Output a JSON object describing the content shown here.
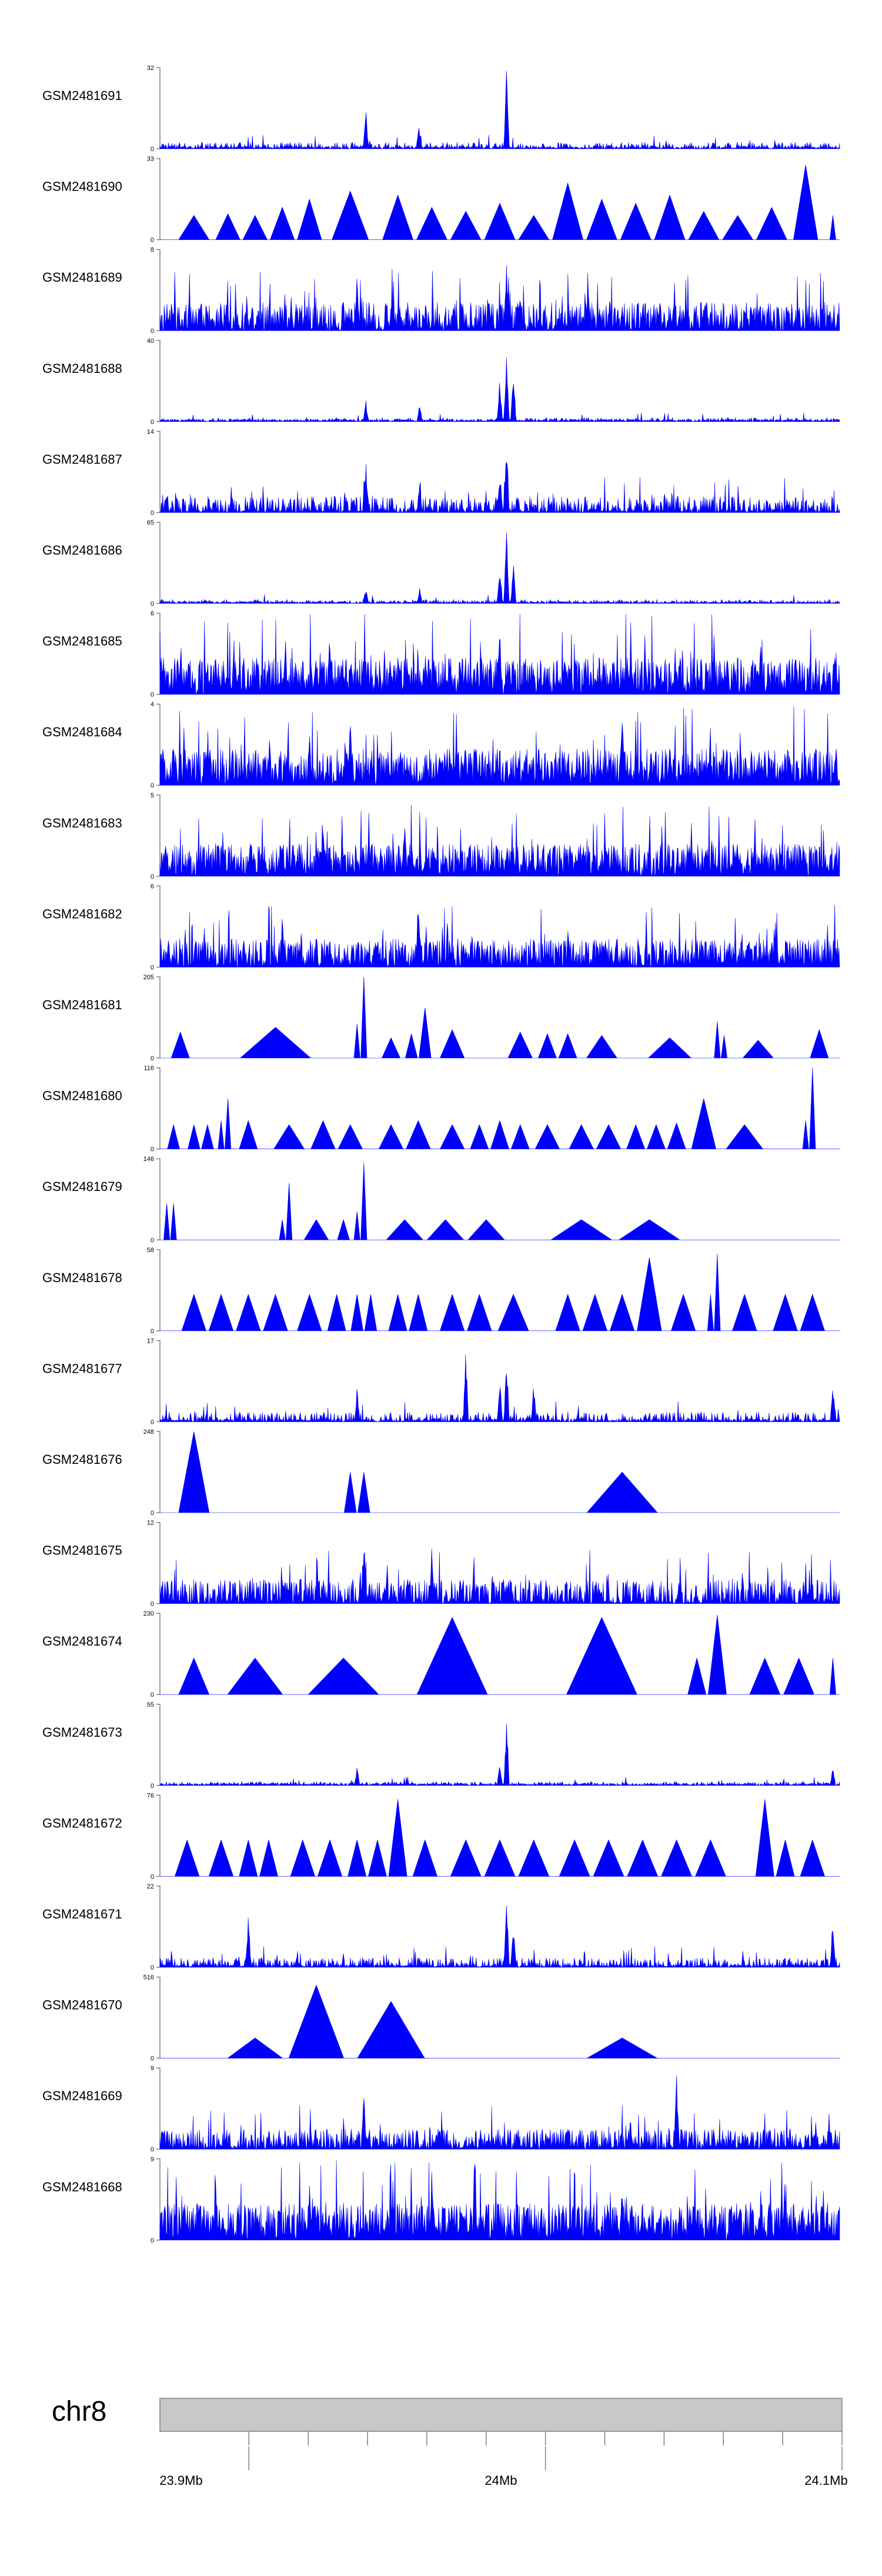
{
  "chart_data": {
    "type": "area",
    "title": "",
    "chromosome": "chr8",
    "region": {
      "start_mb": 23.87,
      "end_mb": 24.1
    },
    "position_labels": [
      "23.9Mb",
      "24Mb",
      "24.1Mb"
    ],
    "position_ticks_mb": [
      23.9,
      24.0,
      24.1
    ],
    "minor_ticks_mb": [
      23.9,
      23.92,
      23.94,
      23.96,
      23.98,
      24.0,
      24.02,
      24.04,
      24.06,
      24.08,
      24.1
    ],
    "colors": {
      "signal": "#0000ff",
      "axis": "#808080",
      "ideogram": "#c8c8c8"
    },
    "tracks": [
      {
        "name": "GSM2481691",
        "ymax": "32",
        "ymin": "0",
        "ymax_value": 32,
        "style": "noise",
        "density": 0.5,
        "base": 0.08,
        "spikes": [
          [
            0.303,
            0.5
          ],
          [
            0.51,
            1.0
          ],
          [
            0.381,
            0.35
          ],
          [
            0.66,
            0.05
          ]
        ]
      },
      {
        "name": "GSM2481690",
        "ymax": "33",
        "ymin": "0",
        "ymax_value": 33,
        "style": "triangles",
        "peaks": [
          [
            0.05,
            0.3
          ],
          [
            0.1,
            0.32
          ],
          [
            0.14,
            0.3
          ],
          [
            0.18,
            0.4
          ],
          [
            0.22,
            0.5
          ],
          [
            0.28,
            0.6
          ],
          [
            0.35,
            0.55
          ],
          [
            0.4,
            0.4
          ],
          [
            0.45,
            0.35
          ],
          [
            0.5,
            0.45
          ],
          [
            0.55,
            0.3
          ],
          [
            0.6,
            0.7
          ],
          [
            0.65,
            0.5
          ],
          [
            0.7,
            0.45
          ],
          [
            0.75,
            0.55
          ],
          [
            0.8,
            0.35
          ],
          [
            0.85,
            0.3
          ],
          [
            0.9,
            0.4
          ],
          [
            0.95,
            0.92
          ],
          [
            0.99,
            0.3
          ]
        ]
      },
      {
        "name": "GSM2481689",
        "ymax": "8",
        "ymin": "0",
        "ymax_value": 8,
        "style": "noise",
        "density": 0.9,
        "base": 0.35,
        "spikes": [
          [
            0.29,
            0.7
          ],
          [
            0.51,
            0.9
          ],
          [
            0.53,
            0.6
          ]
        ]
      },
      {
        "name": "GSM2481688",
        "ymax": "40",
        "ymin": "0",
        "ymax_value": 40,
        "style": "noise",
        "density": 0.3,
        "base": 0.05,
        "spikes": [
          [
            0.303,
            0.28
          ],
          [
            0.5,
            0.6
          ],
          [
            0.51,
            1.0
          ],
          [
            0.52,
            0.7
          ],
          [
            0.382,
            0.25
          ]
        ]
      },
      {
        "name": "GSM2481687",
        "ymax": "14",
        "ymin": "0",
        "ymax_value": 14,
        "style": "noise",
        "density": 0.7,
        "base": 0.2,
        "spikes": [
          [
            0.303,
            0.7
          ],
          [
            0.51,
            1.0
          ],
          [
            0.5,
            0.6
          ],
          [
            0.382,
            0.45
          ]
        ]
      },
      {
        "name": "GSM2481686",
        "ymax": "65",
        "ymin": "0",
        "ymax_value": 65,
        "style": "noise",
        "density": 0.3,
        "base": 0.05,
        "spikes": [
          [
            0.303,
            0.22
          ],
          [
            0.5,
            0.55
          ],
          [
            0.51,
            1.0
          ],
          [
            0.52,
            0.6
          ],
          [
            0.382,
            0.2
          ]
        ]
      },
      {
        "name": "GSM2481685",
        "ymax": "6",
        "ymin": "0",
        "ymax_value": 6,
        "style": "noise",
        "density": 1.0,
        "base": 0.45,
        "spikes": [
          [
            0.25,
            0.9
          ],
          [
            0.5,
            0.8
          ]
        ]
      },
      {
        "name": "GSM2481684",
        "ymax": "4",
        "ymin": "0",
        "ymax_value": 4,
        "style": "noise",
        "density": 1.0,
        "base": 0.45,
        "spikes": [
          [
            0.28,
            0.9
          ],
          [
            0.68,
            0.9
          ]
        ]
      },
      {
        "name": "GSM2481683",
        "ymax": "5",
        "ymin": "0",
        "ymax_value": 5,
        "style": "noise",
        "density": 1.0,
        "base": 0.4,
        "spikes": [
          [
            0.24,
            0.9
          ],
          [
            0.36,
            0.8
          ]
        ]
      },
      {
        "name": "GSM2481682",
        "ymax": "6",
        "ymin": "0",
        "ymax_value": 6,
        "style": "noise",
        "density": 0.9,
        "base": 0.35,
        "spikes": [
          [
            0.38,
            0.9
          ],
          [
            0.18,
            0.7
          ]
        ]
      },
      {
        "name": "GSM2481681",
        "ymax": "205",
        "ymin": "0",
        "ymax_value": 205,
        "style": "triangles",
        "peaks": [
          [
            0.03,
            0.32
          ],
          [
            0.17,
            0.38
          ],
          [
            0.29,
            0.42
          ],
          [
            0.3,
            1.0
          ],
          [
            0.34,
            0.25
          ],
          [
            0.37,
            0.3
          ],
          [
            0.39,
            0.62
          ],
          [
            0.43,
            0.35
          ],
          [
            0.53,
            0.32
          ],
          [
            0.57,
            0.3
          ],
          [
            0.6,
            0.3
          ],
          [
            0.65,
            0.28
          ],
          [
            0.75,
            0.25
          ],
          [
            0.82,
            0.45
          ],
          [
            0.83,
            0.28
          ],
          [
            0.88,
            0.22
          ],
          [
            0.97,
            0.35
          ]
        ]
      },
      {
        "name": "GSM2481680",
        "ymax": "116",
        "ymin": "0",
        "ymax_value": 116,
        "style": "triangles",
        "peaks": [
          [
            0.02,
            0.3
          ],
          [
            0.05,
            0.3
          ],
          [
            0.07,
            0.3
          ],
          [
            0.09,
            0.35
          ],
          [
            0.1,
            0.62
          ],
          [
            0.13,
            0.35
          ],
          [
            0.19,
            0.3
          ],
          [
            0.24,
            0.35
          ],
          [
            0.28,
            0.3
          ],
          [
            0.34,
            0.3
          ],
          [
            0.38,
            0.35
          ],
          [
            0.43,
            0.3
          ],
          [
            0.47,
            0.3
          ],
          [
            0.5,
            0.35
          ],
          [
            0.53,
            0.3
          ],
          [
            0.57,
            0.3
          ],
          [
            0.62,
            0.3
          ],
          [
            0.66,
            0.3
          ],
          [
            0.7,
            0.3
          ],
          [
            0.73,
            0.3
          ],
          [
            0.76,
            0.32
          ],
          [
            0.8,
            0.62
          ],
          [
            0.86,
            0.3
          ],
          [
            0.95,
            0.35
          ],
          [
            0.96,
            1.0
          ]
        ]
      },
      {
        "name": "GSM2481679",
        "ymax": "146",
        "ymin": "0",
        "ymax_value": 146,
        "style": "triangles",
        "peaks": [
          [
            0.01,
            0.45
          ],
          [
            0.02,
            0.45
          ],
          [
            0.18,
            0.25
          ],
          [
            0.19,
            0.7
          ],
          [
            0.23,
            0.25
          ],
          [
            0.27,
            0.25
          ],
          [
            0.29,
            0.35
          ],
          [
            0.3,
            0.95
          ],
          [
            0.36,
            0.25
          ],
          [
            0.42,
            0.25
          ],
          [
            0.48,
            0.25
          ],
          [
            0.62,
            0.25
          ],
          [
            0.72,
            0.25
          ]
        ]
      },
      {
        "name": "GSM2481678",
        "ymax": "58",
        "ymin": "0",
        "ymax_value": 58,
        "style": "triangles",
        "peaks": [
          [
            0.05,
            0.45
          ],
          [
            0.09,
            0.45
          ],
          [
            0.13,
            0.45
          ],
          [
            0.17,
            0.45
          ],
          [
            0.22,
            0.45
          ],
          [
            0.26,
            0.45
          ],
          [
            0.29,
            0.45
          ],
          [
            0.31,
            0.45
          ],
          [
            0.35,
            0.45
          ],
          [
            0.38,
            0.45
          ],
          [
            0.43,
            0.45
          ],
          [
            0.47,
            0.45
          ],
          [
            0.52,
            0.45
          ],
          [
            0.6,
            0.45
          ],
          [
            0.64,
            0.45
          ],
          [
            0.68,
            0.45
          ],
          [
            0.72,
            0.9
          ],
          [
            0.77,
            0.45
          ],
          [
            0.81,
            0.45
          ],
          [
            0.82,
            0.95
          ],
          [
            0.86,
            0.45
          ],
          [
            0.92,
            0.45
          ],
          [
            0.96,
            0.45
          ]
        ]
      },
      {
        "name": "GSM2481677",
        "ymax": "17",
        "ymin": "0",
        "ymax_value": 17,
        "style": "noise",
        "density": 0.5,
        "base": 0.12,
        "spikes": [
          [
            0.29,
            0.45
          ],
          [
            0.51,
            0.9
          ],
          [
            0.5,
            0.6
          ],
          [
            0.45,
            0.95
          ],
          [
            0.55,
            0.5
          ],
          [
            0.99,
            0.55
          ]
        ]
      },
      {
        "name": "GSM2481676",
        "ymax": "248",
        "ymin": "0",
        "ymax_value": 248,
        "style": "triangles",
        "peaks": [
          [
            0.05,
            1.0
          ],
          [
            0.28,
            0.5
          ],
          [
            0.3,
            0.5
          ],
          [
            0.68,
            0.5
          ]
        ]
      },
      {
        "name": "GSM2481675",
        "ymax": "12",
        "ymin": "0",
        "ymax_value": 12,
        "style": "noise",
        "density": 0.8,
        "base": 0.3,
        "spikes": [
          [
            0.3,
            0.95
          ],
          [
            0.4,
            0.75
          ]
        ]
      },
      {
        "name": "GSM2481674",
        "ymax": "230",
        "ymin": "0",
        "ymax_value": 230,
        "style": "triangles",
        "peaks": [
          [
            0.05,
            0.45
          ],
          [
            0.14,
            0.45
          ],
          [
            0.27,
            0.45
          ],
          [
            0.43,
            0.95
          ],
          [
            0.65,
            0.95
          ],
          [
            0.79,
            0.45
          ],
          [
            0.82,
            0.98
          ],
          [
            0.89,
            0.45
          ],
          [
            0.94,
            0.45
          ],
          [
            0.99,
            0.45
          ]
        ]
      },
      {
        "name": "GSM2481673",
        "ymax": "55",
        "ymin": "0",
        "ymax_value": 55,
        "style": "noise",
        "density": 0.3,
        "base": 0.05,
        "spikes": [
          [
            0.29,
            0.25
          ],
          [
            0.51,
            0.95
          ],
          [
            0.5,
            0.35
          ],
          [
            0.99,
            0.25
          ]
        ]
      },
      {
        "name": "GSM2481672",
        "ymax": "76",
        "ymin": "0",
        "ymax_value": 76,
        "style": "triangles",
        "peaks": [
          [
            0.04,
            0.45
          ],
          [
            0.09,
            0.45
          ],
          [
            0.13,
            0.45
          ],
          [
            0.16,
            0.45
          ],
          [
            0.21,
            0.45
          ],
          [
            0.25,
            0.45
          ],
          [
            0.29,
            0.45
          ],
          [
            0.32,
            0.45
          ],
          [
            0.35,
            0.95
          ],
          [
            0.39,
            0.45
          ],
          [
            0.45,
            0.45
          ],
          [
            0.5,
            0.45
          ],
          [
            0.55,
            0.45
          ],
          [
            0.61,
            0.45
          ],
          [
            0.66,
            0.45
          ],
          [
            0.71,
            0.45
          ],
          [
            0.76,
            0.45
          ],
          [
            0.81,
            0.45
          ],
          [
            0.89,
            0.95
          ],
          [
            0.92,
            0.45
          ],
          [
            0.96,
            0.45
          ]
        ]
      },
      {
        "name": "GSM2481671",
        "ymax": "22",
        "ymin": "0",
        "ymax_value": 22,
        "style": "noise",
        "density": 0.6,
        "base": 0.12,
        "spikes": [
          [
            0.13,
            0.7
          ],
          [
            0.51,
            0.95
          ],
          [
            0.52,
            0.6
          ],
          [
            0.99,
            0.7
          ]
        ]
      },
      {
        "name": "GSM2481670",
        "ymax": "516",
        "ymin": "0",
        "ymax_value": 516,
        "style": "triangles",
        "peaks": [
          [
            0.14,
            0.25
          ],
          [
            0.23,
            0.9
          ],
          [
            0.34,
            0.7
          ],
          [
            0.68,
            0.25
          ]
        ]
      },
      {
        "name": "GSM2481669",
        "ymax": "9",
        "ymin": "0",
        "ymax_value": 9,
        "style": "noise",
        "density": 0.8,
        "base": 0.25,
        "spikes": [
          [
            0.76,
            1.0
          ],
          [
            0.3,
            0.7
          ]
        ]
      },
      {
        "name": "GSM2481668",
        "ymax": "9",
        "ymin": "0",
        "ymax_value": 9,
        "style": "noise",
        "density": 1.0,
        "base": 0.45,
        "spikes": [
          [
            0.4,
            0.9
          ],
          [
            0.68,
            0.85
          ]
        ]
      }
    ]
  }
}
